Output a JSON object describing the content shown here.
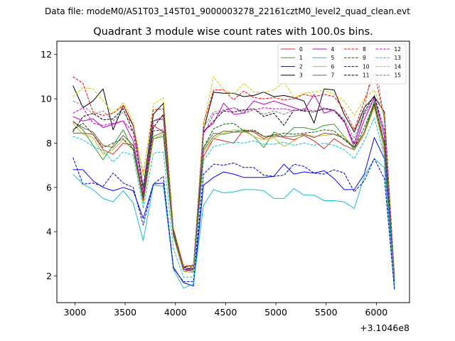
{
  "figure": {
    "suptitle": "Data file: modeM0/AS1T03_145T01_9000003278_22161cztM0_level2_quad_clean.evt"
  },
  "chart_data": {
    "type": "line",
    "title": "Quadrant 3 module wise count rates with 100.0s bins.",
    "xlabel": "",
    "ylabel": "",
    "x_offset_label": "+3.1046e8",
    "xlim": [
      2820,
      6330
    ],
    "ylim": [
      0.8,
      12.6
    ],
    "x_ticks": [
      3000,
      3500,
      4000,
      4500,
      5000,
      5500,
      6000
    ],
    "y_ticks": [
      2,
      4,
      6,
      8,
      10,
      12
    ],
    "grid": false,
    "legend_position": "top-right",
    "legend_columns": 4,
    "x": [
      2980,
      3080,
      3180,
      3280,
      3380,
      3480,
      3580,
      3680,
      3780,
      3880,
      3980,
      4080,
      4180,
      4280,
      4380,
      4480,
      4580,
      4680,
      4780,
      4880,
      4980,
      5080,
      5180,
      5280,
      5380,
      5480,
      5580,
      5680,
      5780,
      5880,
      5980,
      6080,
      6180
    ],
    "series": [
      {
        "name": "0",
        "color": "#d62728",
        "dash": "solid",
        "values": [
          8.45,
          8.45,
          8.4,
          7.7,
          7.5,
          8.0,
          7.9,
          5.6,
          8.8,
          8.5,
          3.9,
          2.3,
          2.35,
          7.4,
          8.2,
          8.1,
          8.0,
          8.6,
          8.5,
          8.2,
          8.4,
          8.25,
          8.15,
          8.35,
          8.1,
          7.75,
          8.2,
          7.9,
          7.7,
          8.4,
          9.8,
          7.6,
          1.6
        ]
      },
      {
        "name": "1",
        "color": "#2ca02c",
        "dash": "solid",
        "values": [
          9.0,
          8.6,
          7.9,
          7.25,
          7.9,
          8.6,
          7.7,
          5.3,
          8.2,
          8.3,
          3.8,
          2.2,
          2.3,
          7.8,
          8.45,
          8.4,
          8.5,
          8.6,
          8.3,
          7.8,
          8.5,
          8.3,
          8.7,
          8.7,
          8.6,
          8.8,
          8.85,
          8.3,
          7.7,
          8.5,
          9.9,
          8.0,
          1.7
        ]
      },
      {
        "name": "2",
        "color": "#0000ff",
        "dash": "solid",
        "values": [
          6.8,
          6.8,
          6.3,
          6.0,
          5.85,
          6.0,
          5.85,
          4.6,
          6.15,
          6.2,
          2.4,
          1.7,
          1.55,
          6.1,
          6.45,
          6.7,
          6.6,
          6.45,
          6.45,
          6.45,
          6.5,
          7.05,
          6.6,
          6.7,
          6.65,
          6.75,
          6.4,
          5.9,
          5.9,
          6.6,
          8.25,
          7.3,
          1.4
        ]
      },
      {
        "name": "3",
        "color": "#000000",
        "dash": "solid",
        "values": [
          10.6,
          9.6,
          9.9,
          10.45,
          8.6,
          9.7,
          8.8,
          6.0,
          9.3,
          9.8,
          4.1,
          2.4,
          2.5,
          8.6,
          10.3,
          10.25,
          10.25,
          10.1,
          10.15,
          10.3,
          10.1,
          10.15,
          10.05,
          9.9,
          8.9,
          10.45,
          10.4,
          9.3,
          8.5,
          9.6,
          10.1,
          9.4,
          2.0
        ]
      },
      {
        "name": "4",
        "color": "#bf00bf",
        "dash": "solid",
        "values": [
          9.2,
          9.0,
          9.1,
          8.7,
          8.85,
          9.0,
          8.1,
          5.5,
          9.0,
          9.1,
          3.9,
          2.3,
          2.2,
          8.55,
          8.9,
          9.8,
          9.3,
          9.35,
          9.9,
          9.75,
          9.9,
          9.75,
          9.6,
          9.45,
          10.2,
          9.35,
          9.5,
          9.0,
          7.8,
          9.05,
          10.05,
          8.3,
          1.8
        ]
      },
      {
        "name": "5",
        "color": "#17becf",
        "dash": "solid",
        "values": [
          6.6,
          6.15,
          5.9,
          5.5,
          5.35,
          5.85,
          5.3,
          3.6,
          6.1,
          6.05,
          2.3,
          1.45,
          1.65,
          5.2,
          5.9,
          5.75,
          5.8,
          5.9,
          5.9,
          5.85,
          5.5,
          5.5,
          5.95,
          5.65,
          5.65,
          5.4,
          5.4,
          5.35,
          5.05,
          6.5,
          7.3,
          6.9,
          1.5
        ]
      },
      {
        "name": "6",
        "color": "#bcbd22",
        "dash": "solid",
        "values": [
          8.9,
          8.4,
          8.25,
          7.5,
          7.7,
          8.15,
          7.7,
          5.3,
          8.2,
          8.4,
          3.8,
          2.2,
          2.15,
          7.6,
          8.2,
          8.45,
          8.6,
          8.55,
          8.3,
          8.15,
          8.25,
          7.85,
          8.1,
          8.4,
          8.3,
          8.35,
          8.4,
          8.3,
          7.8,
          8.4,
          9.6,
          7.7,
          1.7
        ]
      },
      {
        "name": "7",
        "color": "#8c564b",
        "dash": "solid",
        "values": [
          8.95,
          8.7,
          8.5,
          7.9,
          7.8,
          8.35,
          7.9,
          5.4,
          8.3,
          8.5,
          3.85,
          2.3,
          2.3,
          7.7,
          8.3,
          8.55,
          8.5,
          8.5,
          8.55,
          8.3,
          8.3,
          8.3,
          8.3,
          8.4,
          8.25,
          8.45,
          8.4,
          8.2,
          7.8,
          8.5,
          9.7,
          7.9,
          1.7
        ]
      },
      {
        "name": "8",
        "color": "#ff0000",
        "dash": "dashed",
        "values": [
          11.0,
          10.7,
          9.4,
          9.25,
          9.35,
          9.7,
          8.75,
          6.6,
          9.5,
          9.55,
          4.0,
          2.5,
          2.4,
          8.9,
          10.4,
          10.4,
          9.95,
          10.35,
          10.05,
          10.0,
          10.05,
          9.95,
          10.0,
          10.2,
          10.1,
          10.2,
          10.1,
          9.5,
          8.6,
          9.9,
          11.2,
          9.1,
          2.0
        ]
      },
      {
        "name": "9",
        "color": "#006400",
        "dash": "dashed",
        "values": [
          8.6,
          8.9,
          8.4,
          7.8,
          8.0,
          8.2,
          7.7,
          5.55,
          8.55,
          8.6,
          3.9,
          2.3,
          2.3,
          7.8,
          8.65,
          8.85,
          8.9,
          8.55,
          8.6,
          8.3,
          8.35,
          8.45,
          8.4,
          8.45,
          8.5,
          8.6,
          8.55,
          8.15,
          7.8,
          8.7,
          9.8,
          8.0,
          1.75
        ]
      },
      {
        "name": "10",
        "color": "#0000cd",
        "dash": "dashed",
        "values": [
          7.35,
          6.15,
          6.2,
          6.05,
          6.65,
          6.2,
          6.0,
          4.3,
          6.15,
          6.5,
          2.35,
          1.75,
          1.75,
          6.6,
          7.05,
          7.0,
          7.1,
          6.9,
          6.9,
          6.55,
          6.5,
          6.55,
          7.05,
          6.95,
          6.65,
          6.6,
          6.8,
          6.65,
          5.8,
          6.3,
          7.3,
          6.4,
          1.4
        ]
      },
      {
        "name": "11",
        "color": "#000000",
        "dash": "dashed",
        "values": [
          8.5,
          9.2,
          9.35,
          9.05,
          9.1,
          9.55,
          8.5,
          5.8,
          8.7,
          9.3,
          4.0,
          2.4,
          2.3,
          8.5,
          9.0,
          9.45,
          9.4,
          9.5,
          9.55,
          9.2,
          9.35,
          8.8,
          9.5,
          9.45,
          9.4,
          9.55,
          9.5,
          9.0,
          7.95,
          9.4,
          10.15,
          8.55,
          1.85
        ]
      },
      {
        "name": "12",
        "color": "#cc00cc",
        "dash": "dashed",
        "values": [
          9.35,
          9.6,
          8.9,
          8.8,
          8.9,
          9.0,
          8.5,
          5.7,
          9.0,
          9.2,
          4.0,
          2.3,
          2.4,
          8.4,
          9.3,
          9.45,
          9.6,
          9.35,
          9.5,
          9.6,
          9.55,
          9.55,
          9.45,
          9.55,
          9.45,
          9.55,
          9.45,
          8.95,
          8.0,
          9.3,
          10.0,
          8.6,
          1.8
        ]
      },
      {
        "name": "13",
        "color": "#17becf",
        "dash": "dashed",
        "values": [
          8.3,
          8.15,
          7.85,
          7.65,
          7.15,
          7.6,
          7.45,
          5.05,
          7.55,
          7.6,
          3.25,
          1.95,
          1.95,
          7.2,
          7.85,
          7.95,
          8.05,
          8.0,
          8.1,
          7.95,
          7.95,
          8.05,
          7.9,
          8.0,
          7.9,
          8.0,
          7.9,
          7.7,
          7.3,
          8.1,
          9.15,
          7.4,
          1.65
        ]
      },
      {
        "name": "14",
        "color": "#cccc00",
        "dash": "dashed",
        "values": [
          10.1,
          10.5,
          10.45,
          9.9,
          9.35,
          9.8,
          9.0,
          6.5,
          9.75,
          10.05,
          4.2,
          2.5,
          2.45,
          8.9,
          11.0,
          10.4,
          10.2,
          10.7,
          10.3,
          10.3,
          10.4,
          10.75,
          10.05,
          10.25,
          10.3,
          10.4,
          10.2,
          9.9,
          9.25,
          10.0,
          10.4,
          9.25,
          2.0
        ]
      },
      {
        "name": "15",
        "color": "#808080",
        "dash": "dashed",
        "values": [
          9.9,
          9.7,
          9.3,
          9.45,
          9.0,
          9.4,
          8.8,
          5.9,
          9.0,
          9.2,
          4.0,
          2.35,
          2.3,
          8.7,
          9.4,
          9.5,
          9.6,
          9.45,
          9.55,
          9.3,
          9.45,
          9.3,
          9.5,
          9.5,
          9.4,
          9.6,
          9.5,
          9.1,
          8.2,
          9.5,
          11.9,
          9.0,
          1.9
        ]
      }
    ]
  }
}
